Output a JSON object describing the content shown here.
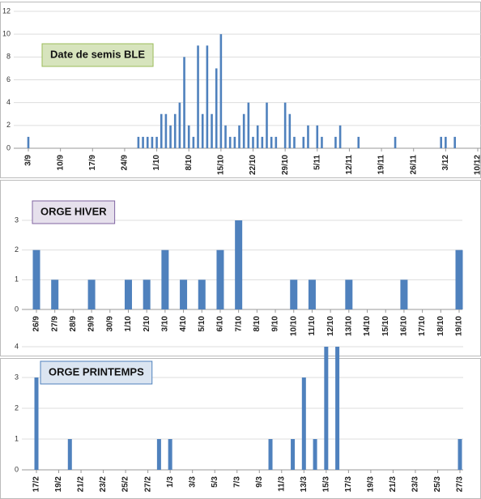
{
  "chart_data": [
    {
      "type": "bar",
      "title": "Date de semis BLE",
      "color": "#4f81bd",
      "grid": true,
      "categories": [
        "3/9",
        null,
        null,
        null,
        null,
        null,
        null,
        "10/9",
        null,
        null,
        null,
        null,
        null,
        null,
        "17/9",
        null,
        null,
        null,
        null,
        null,
        null,
        "24/9",
        null,
        null,
        null,
        null,
        null,
        null,
        "1/10",
        null,
        null,
        null,
        null,
        null,
        null,
        "8/10",
        null,
        null,
        null,
        null,
        null,
        null,
        "15/10",
        null,
        null,
        null,
        null,
        null,
        null,
        "22/10",
        null,
        null,
        null,
        null,
        null,
        null,
        "29/10",
        null,
        null,
        null,
        null,
        null,
        null,
        "5/11",
        null,
        null,
        null,
        null,
        null,
        null,
        "12/11",
        null,
        null,
        null,
        null,
        null,
        null,
        "19/11",
        null,
        null,
        null,
        null,
        null,
        null,
        "26/11",
        null,
        null,
        null,
        null,
        null,
        null,
        "3/12",
        null,
        null,
        null,
        null,
        null,
        null,
        "10/12"
      ],
      "values": [
        1,
        0,
        0,
        0,
        0,
        0,
        0,
        0,
        0,
        0,
        0,
        0,
        0,
        0,
        0,
        0,
        0,
        0,
        0,
        0,
        0,
        0,
        0,
        0,
        1,
        1,
        1,
        1,
        1,
        3,
        3,
        2,
        3,
        4,
        8,
        2,
        1,
        9,
        3,
        9,
        3,
        7,
        10,
        2,
        1,
        1,
        2,
        3,
        4,
        1,
        2,
        1,
        4,
        1,
        1,
        0,
        4,
        3,
        1,
        0,
        1,
        2,
        0,
        2,
        1,
        0,
        0,
        1,
        2,
        0,
        0,
        0,
        1,
        0,
        0,
        0,
        0,
        0,
        0,
        0,
        1,
        0,
        0,
        0,
        0,
        0,
        0,
        0,
        0,
        0,
        1,
        1,
        0,
        1,
        0,
        0,
        0,
        0,
        0
      ],
      "ylim": [
        0,
        12
      ],
      "yticks": [
        0,
        2,
        4,
        6,
        8,
        10,
        12
      ]
    },
    {
      "type": "bar",
      "title": "ORGE HIVER",
      "color": "#4f81bd",
      "grid": true,
      "categories": [
        "26/9",
        "27/9",
        "28/9",
        "29/9",
        "30/9",
        "1/10",
        "2/10",
        "3/10",
        "4/10",
        "5/10",
        "6/10",
        "7/10",
        "8/10",
        "9/10",
        "10/10",
        "11/10",
        "12/10",
        "13/10",
        "14/10",
        "15/10",
        "16/10",
        "17/10",
        "18/10",
        "19/10"
      ],
      "values": [
        2,
        1,
        0,
        1,
        0,
        1,
        1,
        2,
        1,
        1,
        2,
        3,
        0,
        0,
        1,
        1,
        0,
        1,
        0,
        0,
        1,
        0,
        0,
        2
      ],
      "ylim": [
        0,
        3
      ],
      "yticks": [
        0,
        1,
        2,
        3
      ]
    },
    {
      "type": "bar",
      "title": "ORGE PRINTEMPS",
      "color": "#4f81bd",
      "grid": true,
      "categories": [
        "17/2",
        null,
        "19/2",
        null,
        "21/2",
        null,
        "23/2",
        null,
        "25/2",
        null,
        "27/2",
        null,
        "1/3",
        null,
        "3/3",
        null,
        "5/3",
        null,
        "7/3",
        null,
        "9/3",
        null,
        "11/3",
        null,
        "13/3",
        null,
        "15/3",
        null,
        "17/3",
        null,
        "19/3",
        null,
        "21/3",
        null,
        "23/3",
        null,
        "25/3",
        null,
        "27/3"
      ],
      "values": [
        3,
        0,
        0,
        1,
        0,
        0,
        0,
        0,
        0,
        0,
        0,
        1,
        1,
        0,
        0,
        0,
        0,
        0,
        0,
        0,
        0,
        1,
        0,
        1,
        3,
        1,
        4,
        4,
        0,
        0,
        0,
        0,
        0,
        0,
        0,
        0,
        0,
        0,
        1
      ],
      "ylim": [
        0,
        4
      ],
      "yticks": [
        0,
        1,
        2,
        3,
        4
      ]
    }
  ]
}
